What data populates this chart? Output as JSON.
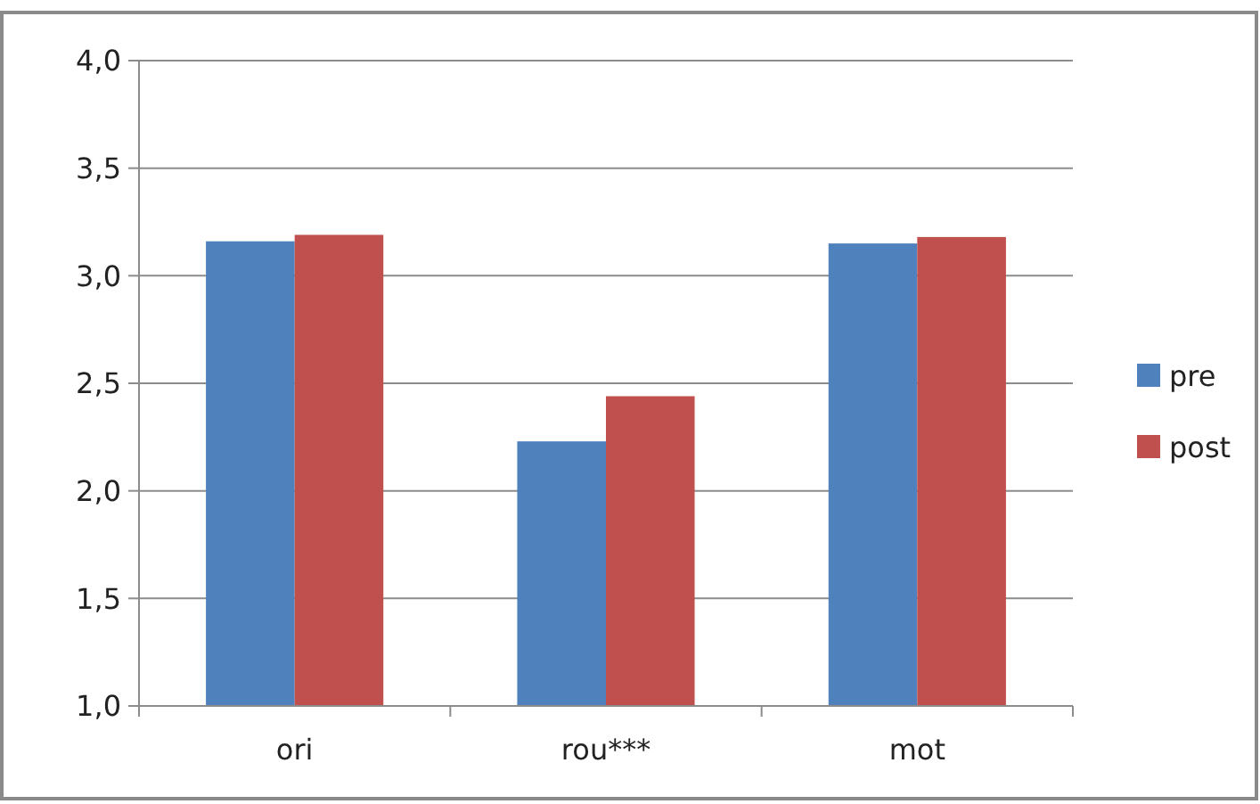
{
  "chart_data": {
    "type": "bar",
    "categories": [
      "ori",
      "rou***",
      "mot"
    ],
    "series": [
      {
        "name": "pre",
        "color": "#4f81bd",
        "values": [
          3.16,
          2.23,
          3.15
        ]
      },
      {
        "name": "post",
        "color": "#c0504d",
        "values": [
          3.19,
          2.44,
          3.18
        ]
      }
    ],
    "ylim": [
      1,
      4
    ],
    "yticks": [
      {
        "value": 1,
        "label": "1,0"
      },
      {
        "value": 1.5,
        "label": "1,5"
      },
      {
        "value": 2,
        "label": "2,0"
      },
      {
        "value": 2.5,
        "label": "2,5"
      },
      {
        "value": 3,
        "label": "3,0"
      },
      {
        "value": 3.5,
        "label": "3,5"
      },
      {
        "value": 4,
        "label": "4,0"
      }
    ],
    "grid": "y",
    "legend": "right"
  }
}
